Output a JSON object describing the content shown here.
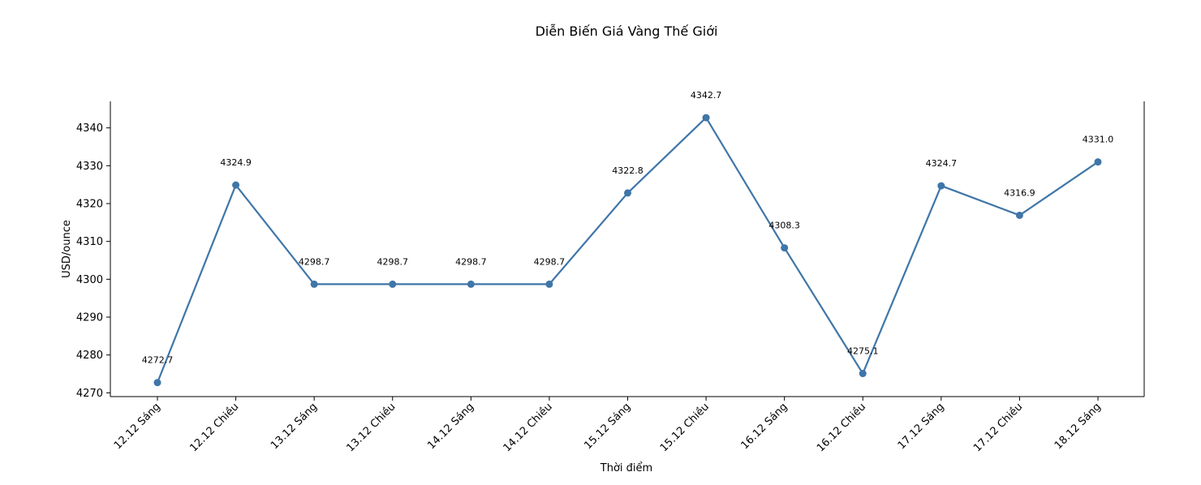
{
  "chart_data": {
    "type": "line",
    "title": "Diễn Biến Giá Vàng Thế Giới",
    "xlabel": "Thời điểm",
    "ylabel": "USD/ounce",
    "categories": [
      "12.12 Sáng",
      "12.12 Chiều",
      "13.12 Sáng",
      "13.12 Chiều",
      "14.12 Sáng",
      "14.12 Chiều",
      "15.12 Sáng",
      "15.12 Chiều",
      "16.12 Sáng",
      "16.12 Chiều",
      "17.12 Sáng",
      "17.12 Chiều",
      "18.12 Sáng"
    ],
    "series": [
      {
        "values": [
          4272.7,
          4324.9,
          4298.7,
          4298.7,
          4298.7,
          4298.7,
          4322.8,
          4342.7,
          4308.3,
          4275.1,
          4324.7,
          4316.9,
          4331.0
        ],
        "labels": [
          "4272.7",
          "4324.9",
          "4298.7",
          "4298.7",
          "4298.7",
          "4298.7",
          "4322.8",
          "4342.7",
          "4308.3",
          "4275.1",
          "4324.7",
          "4316.9",
          "4331.0"
        ],
        "color": "#3f76a8"
      }
    ],
    "ylim": [
      4269,
      4347
    ],
    "yticks": [
      4270,
      4280,
      4290,
      4300,
      4310,
      4320,
      4330,
      4340
    ],
    "grid": false,
    "legend": "none"
  }
}
